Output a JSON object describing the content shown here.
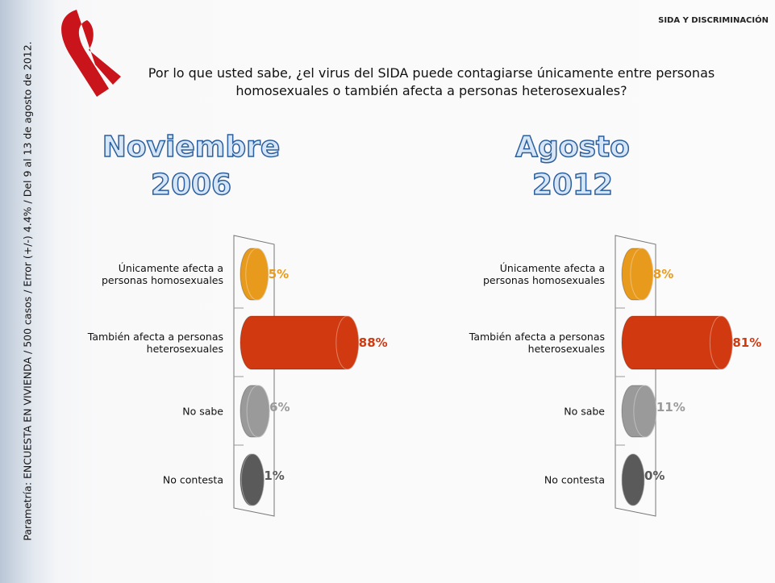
{
  "header": "SIDA Y DISCRIMINACIÓN",
  "question": "Por lo que usted sabe, ¿el virus del SIDA puede contagiarse únicamente entre personas homosexuales o también afecta a personas heterosexuales?",
  "source": "Parametría: ENCUESTA EN VIVIENDA / 500 casos / Error (+/-) 4.4% / Del 9 al 13 de agosto de 2012.",
  "chart_data": [
    {
      "type": "bar",
      "orientation": "horizontal",
      "title": "Noviembre 2006",
      "categories": [
        "Únicamente afecta a personas homosexuales",
        "También afecta a personas heterosexuales",
        "No sabe",
        "No contesta"
      ],
      "values": [
        5,
        88,
        6,
        1
      ],
      "value_labels": [
        "5%",
        "88%",
        "6%",
        "1%"
      ],
      "colors": [
        "#e89a1c",
        "#d13a10",
        "#9a9a9a",
        "#5a5a5a"
      ]
    },
    {
      "type": "bar",
      "orientation": "horizontal",
      "title": "Agosto 2012",
      "categories": [
        "Únicamente afecta a personas homosexuales",
        "También afecta a personas heterosexuales",
        "No sabe",
        "No contesta"
      ],
      "values": [
        8,
        81,
        11,
        0
      ],
      "value_labels": [
        "8%",
        "81%",
        "11%",
        "0%"
      ],
      "colors": [
        "#e89a1c",
        "#d13a10",
        "#9a9a9a",
        "#5a5a5a"
      ]
    }
  ]
}
